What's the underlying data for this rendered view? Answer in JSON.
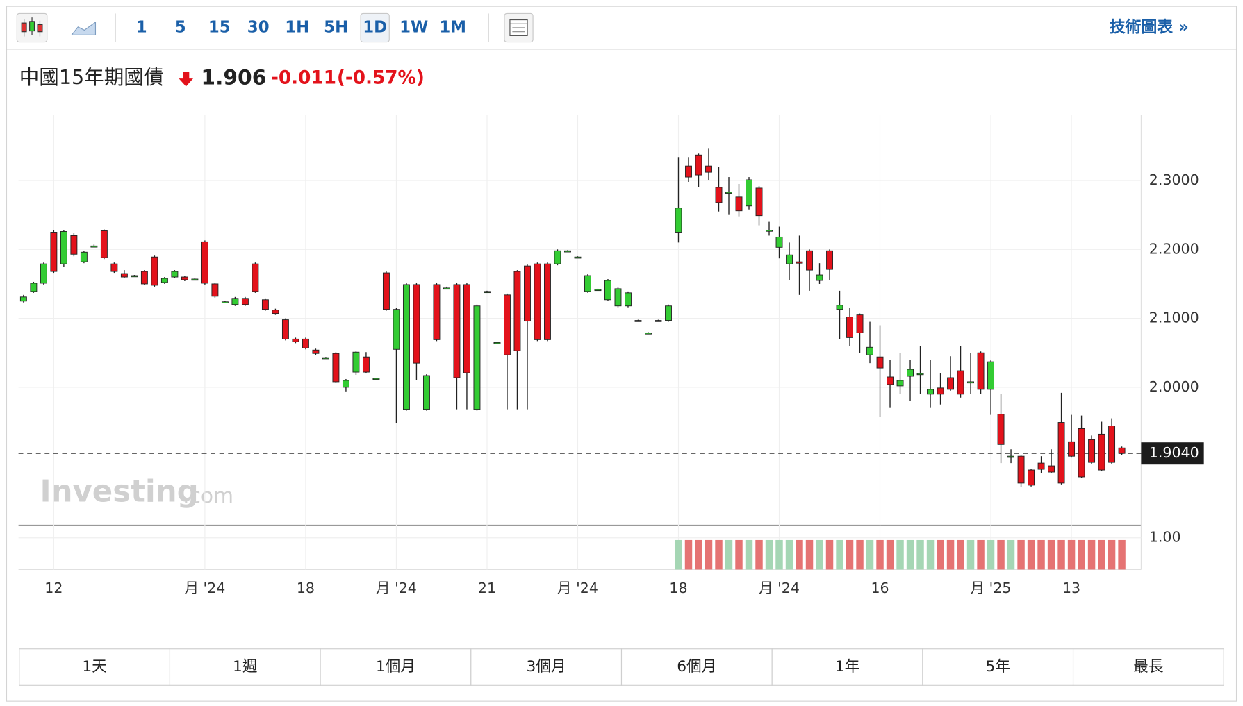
{
  "toolbar": {
    "intervals": [
      "1",
      "5",
      "15",
      "30",
      "1H",
      "5H",
      "1D",
      "1W",
      "1M"
    ],
    "active_interval": 6
  },
  "technical_chart_link": "技術圖表 »",
  "chart_data": {
    "type": "candlestick",
    "title": "中國15年期國債",
    "last": 1.906,
    "change": -0.011,
    "change_percent": "(-0.57%)",
    "watermark": {
      "brand": "Investing",
      "suffix": ".com"
    },
    "up_color": "#33cc33",
    "down_color": "#e3121b",
    "grid": true,
    "categories": [
      null,
      null,
      null,
      "12",
      null,
      null,
      null,
      null,
      null,
      null,
      null,
      null,
      null,
      null,
      null,
      null,
      null,
      null,
      "月 '24",
      null,
      null,
      null,
      null,
      null,
      null,
      null,
      null,
      null,
      "18",
      null,
      null,
      null,
      null,
      null,
      null,
      null,
      null,
      "月 '24",
      null,
      null,
      null,
      null,
      null,
      null,
      null,
      null,
      "21",
      null,
      null,
      null,
      null,
      null,
      null,
      null,
      null,
      "月 '24",
      null,
      null,
      null,
      null,
      null,
      null,
      null,
      null,
      null,
      "18",
      null,
      null,
      null,
      null,
      null,
      null,
      null,
      null,
      null,
      "月 '24",
      null,
      null,
      null,
      null,
      null,
      null,
      null,
      null,
      null,
      "16",
      null,
      null,
      null,
      null,
      null,
      null,
      null,
      null,
      null,
      null,
      "月 '25",
      null,
      null,
      null,
      null,
      null,
      null,
      null,
      "13",
      null,
      null,
      null,
      null,
      null
    ],
    "open": [
      2.125,
      2.139,
      2.151,
      2.225,
      2.179,
      2.22,
      2.182,
      2.205,
      2.227,
      2.179,
      2.165,
      2.162,
      2.168,
      2.189,
      2.152,
      2.16,
      2.16,
      2.157,
      2.211,
      2.15,
      2.124,
      2.12,
      2.129,
      2.179,
      2.127,
      2.112,
      2.098,
      2.07,
      2.07,
      2.054,
      2.043,
      2.049,
      2.0,
      2.022,
      2.044,
      2.013,
      2.166,
      2.055,
      1.968,
      2.149,
      1.968,
      2.149,
      2.144,
      2.149,
      2.149,
      1.968,
      2.139,
      2.065,
      2.134,
      2.168,
      2.176,
      2.179,
      2.179,
      2.179,
      2.198,
      2.189,
      2.139,
      2.142,
      2.127,
      2.118,
      2.118,
      2.097,
      2.079,
      2.097,
      2.097,
      2.225,
      2.321,
      2.337,
      2.321,
      2.29,
      2.283,
      2.276,
      2.263,
      2.289,
      2.228,
      2.203,
      2.179,
      2.182,
      2.198,
      2.155,
      2.198,
      2.113,
      2.102,
      2.105,
      2.047,
      2.044,
      2.015,
      2.002,
      2.016,
      2.02,
      1.99,
      1.999,
      2.014,
      2.024,
      2.008,
      2.05,
      1.997,
      1.961,
      1.9,
      1.9,
      1.88,
      1.89,
      1.886,
      1.949,
      1.921,
      1.94,
      1.924,
      1.932,
      1.944,
      1.912
    ],
    "high": [
      2.134,
      2.153,
      2.181,
      2.228,
      2.228,
      2.224,
      2.198,
      2.207,
      2.229,
      2.181,
      2.17,
      2.163,
      2.17,
      2.191,
      2.16,
      2.17,
      2.162,
      2.158,
      2.213,
      2.152,
      2.125,
      2.131,
      2.131,
      2.181,
      2.129,
      2.114,
      2.1,
      2.072,
      2.072,
      2.056,
      2.044,
      2.051,
      2.012,
      2.053,
      2.051,
      2.014,
      2.168,
      2.115,
      2.151,
      2.151,
      2.019,
      2.151,
      2.146,
      2.151,
      2.151,
      2.12,
      2.14,
      2.066,
      2.136,
      2.17,
      2.178,
      2.181,
      2.181,
      2.2,
      2.199,
      2.19,
      2.164,
      2.143,
      2.157,
      2.145,
      2.139,
      2.098,
      2.08,
      2.098,
      2.12,
      2.334,
      2.334,
      2.339,
      2.347,
      2.32,
      2.305,
      2.295,
      2.305,
      2.292,
      2.24,
      2.233,
      2.21,
      2.22,
      2.2,
      2.18,
      2.2,
      2.14,
      2.115,
      2.107,
      2.095,
      2.09,
      2.04,
      2.05,
      2.04,
      2.06,
      2.04,
      2.02,
      2.045,
      2.06,
      2.05,
      2.052,
      2.039,
      1.99,
      1.91,
      1.902,
      1.882,
      1.9,
      1.91,
      1.992,
      1.96,
      1.959,
      1.93,
      1.95,
      1.955,
      1.914
    ],
    "low": [
      2.123,
      2.137,
      2.149,
      2.166,
      2.175,
      2.19,
      2.18,
      2.203,
      2.186,
      2.166,
      2.158,
      2.161,
      2.148,
      2.146,
      2.15,
      2.158,
      2.154,
      2.156,
      2.149,
      2.13,
      2.123,
      2.118,
      2.118,
      2.137,
      2.111,
      2.105,
      2.068,
      2.064,
      2.055,
      2.047,
      2.042,
      2.006,
      1.994,
      2.018,
      2.02,
      2.012,
      2.111,
      1.948,
      1.966,
      2.01,
      1.966,
      2.067,
      2.142,
      1.968,
      1.968,
      1.966,
      2.138,
      2.064,
      1.968,
      1.968,
      1.968,
      2.067,
      2.067,
      2.177,
      2.197,
      2.188,
      2.137,
      2.141,
      2.125,
      2.116,
      2.116,
      2.096,
      2.078,
      2.096,
      2.095,
      2.21,
      2.298,
      2.29,
      2.3,
      2.255,
      2.251,
      2.248,
      2.258,
      2.235,
      2.22,
      2.187,
      2.155,
      2.134,
      2.14,
      2.15,
      2.155,
      2.07,
      2.06,
      2.05,
      2.035,
      1.957,
      1.97,
      1.99,
      1.98,
      1.99,
      1.97,
      1.975,
      1.995,
      1.985,
      1.99,
      1.99,
      1.96,
      1.89,
      1.89,
      1.855,
      1.856,
      1.875,
      1.875,
      1.859,
      1.898,
      1.868,
      1.889,
      1.878,
      1.889,
      1.902
    ],
    "close": [
      2.131,
      2.151,
      2.179,
      2.168,
      2.226,
      2.193,
      2.196,
      2.205,
      2.188,
      2.168,
      2.16,
      2.162,
      2.15,
      2.148,
      2.158,
      2.168,
      2.156,
      2.157,
      2.151,
      2.132,
      2.124,
      2.129,
      2.12,
      2.139,
      2.113,
      2.107,
      2.07,
      2.066,
      2.057,
      2.049,
      2.043,
      2.008,
      2.01,
      2.051,
      2.022,
      2.013,
      2.113,
      2.113,
      2.149,
      2.035,
      2.017,
      2.069,
      2.144,
      2.014,
      2.021,
      2.118,
      2.139,
      2.065,
      2.047,
      2.053,
      2.096,
      2.069,
      2.069,
      2.198,
      2.198,
      2.189,
      2.162,
      2.142,
      2.155,
      2.143,
      2.137,
      2.097,
      2.079,
      2.097,
      2.118,
      2.26,
      2.305,
      2.308,
      2.312,
      2.268,
      2.283,
      2.256,
      2.301,
      2.249,
      2.228,
      2.218,
      2.192,
      2.18,
      2.17,
      2.163,
      2.171,
      2.119,
      2.072,
      2.079,
      2.058,
      2.028,
      2.004,
      2.01,
      2.026,
      2.02,
      1.997,
      1.99,
      1.997,
      1.99,
      2.008,
      1.997,
      2.037,
      1.917,
      1.9,
      1.861,
      1.858,
      1.881,
      1.877,
      1.861,
      1.9,
      1.87,
      1.891,
      1.88,
      1.891,
      1.904
    ],
    "ylim": [
      1.8,
      2.395
    ],
    "yticks": [
      {
        "value": 2.0,
        "label": "2.0000"
      },
      {
        "value": 2.1,
        "label": "2.1000"
      },
      {
        "value": 2.2,
        "label": "2.2000"
      },
      {
        "value": 2.3,
        "label": "2.3000"
      }
    ],
    "last_price": {
      "value": 1.904,
      "label": "1.9040"
    },
    "volume": {
      "up_color": "#a5d6b4",
      "down_color": "#e57373",
      "ylim": [
        0,
        1.4
      ],
      "yticks": [
        {
          "value": 1,
          "label": "1.00"
        }
      ],
      "values": [
        null,
        null,
        null,
        null,
        null,
        null,
        null,
        null,
        null,
        null,
        null,
        null,
        null,
        null,
        null,
        null,
        null,
        null,
        null,
        null,
        null,
        null,
        null,
        null,
        null,
        null,
        null,
        null,
        null,
        null,
        null,
        null,
        null,
        null,
        null,
        null,
        null,
        null,
        null,
        null,
        null,
        null,
        null,
        null,
        null,
        null,
        null,
        null,
        null,
        null,
        null,
        null,
        null,
        null,
        null,
        null,
        null,
        null,
        null,
        null,
        null,
        null,
        null,
        null,
        null,
        0.93,
        0.93,
        0.93,
        0.93,
        0.93,
        0.93,
        0.93,
        0.93,
        0.93,
        0.93,
        0.93,
        0.93,
        0.93,
        0.93,
        0.93,
        0.93,
        0.93,
        0.93,
        0.93,
        0.93,
        0.93,
        0.93,
        0.93,
        0.93,
        0.93,
        0.93,
        0.93,
        0.93,
        0.93,
        0.93,
        0.93,
        0.93,
        0.93,
        0.93,
        0.93,
        0.93,
        0.93,
        0.93,
        0.93,
        0.93,
        0.93,
        0.93,
        0.93,
        0.93,
        0.93
      ]
    }
  },
  "range_buttons": [
    "1天",
    "1週",
    "1個月",
    "3個月",
    "6個月",
    "1年",
    "5年",
    "最長"
  ]
}
